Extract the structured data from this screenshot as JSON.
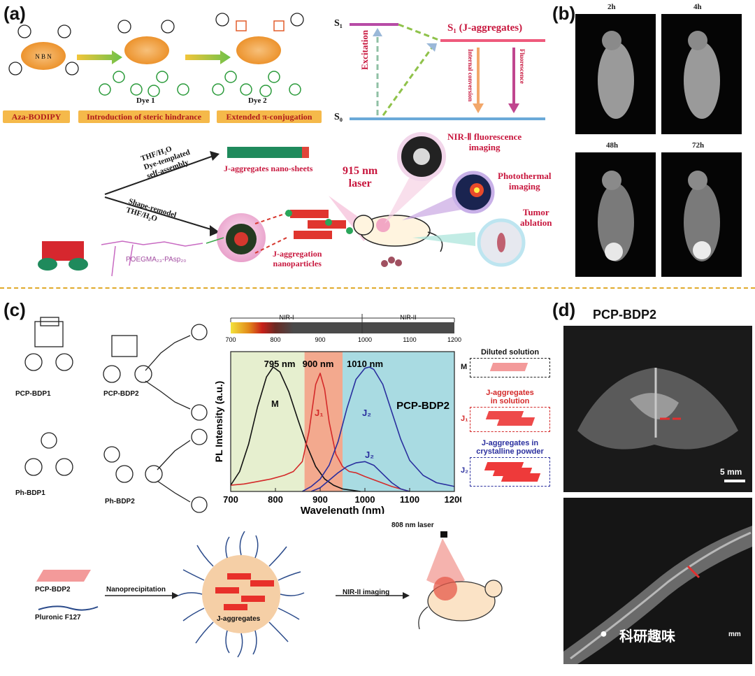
{
  "panel_labels": {
    "a": "(a)",
    "b": "(b)",
    "c": "(c)",
    "d": "(d)"
  },
  "panel_a": {
    "chips": [
      "Aza-BODIPY",
      "Introduction of steric hindrance",
      "Extended π-conjugation"
    ],
    "dye1": "Dye 1",
    "dye2": "Dye 2",
    "jablonski": {
      "s1": "S₁",
      "s1_j": "S₁ (J-aggregates)",
      "s0": "S₀",
      "excitation": "Excitation",
      "internal_conversion": "Internal conversion",
      "fluorescence": "Fluorescence"
    },
    "route_top": [
      "THF/H₂O",
      "Dye-templated",
      "self-assembly"
    ],
    "route_bottom": [
      "Shape-remodel",
      "THF/H₂O"
    ],
    "nanosheets": "J-aggregates nano-sheets",
    "nanoparticles": [
      "J-aggregation",
      "nanoparticles"
    ],
    "laser": [
      "915 nm",
      "laser"
    ],
    "polymer": "POEGMA₂₃-PAsp₂₀",
    "outcomes": [
      [
        "NIR-Ⅱ fluorescence",
        "imaging"
      ],
      [
        "Photothermal",
        "imaging"
      ],
      [
        "Tumor",
        "ablation"
      ]
    ]
  },
  "panel_b": {
    "times": [
      "2h",
      "4h",
      "48h",
      "72h"
    ]
  },
  "panel_c": {
    "molecules": [
      "PCP-BDP1",
      "PCP-BDP2",
      "Ph-BDP1",
      "Ph-BDP2"
    ],
    "spectrum_bar": {
      "labels": [
        "NIR-I",
        "NIR-II"
      ],
      "ticks": [
        "700",
        "800",
        "900",
        "1000",
        "1100",
        "1200"
      ]
    },
    "chart_data": {
      "type": "line",
      "title": "PCP-BDP2",
      "xlabel": "Wavelength (nm)",
      "ylabel": "PL Intensity (a.u.)",
      "xlim": [
        700,
        1200
      ],
      "x_ticks": [
        "700",
        "800",
        "900",
        "1000",
        "1100",
        "1200"
      ],
      "regions": [
        {
          "from": 700,
          "to": 865,
          "color": "#e6efcf"
        },
        {
          "from": 865,
          "to": 950,
          "color": "#f3a98e"
        },
        {
          "from": 950,
          "to": 1200,
          "color": "#a9dbe2"
        }
      ],
      "peak_labels": [
        "795 nm",
        "900 nm",
        "1010 nm"
      ],
      "series": [
        {
          "name": "M",
          "color": "#111111",
          "x": [
            700,
            720,
            740,
            760,
            780,
            795,
            810,
            830,
            850,
            870,
            890,
            910,
            930,
            950,
            970,
            990
          ],
          "y": [
            0.05,
            0.16,
            0.38,
            0.68,
            0.92,
            1.0,
            0.96,
            0.8,
            0.58,
            0.37,
            0.2,
            0.1,
            0.05,
            0.02,
            0.01,
            0.0
          ]
        },
        {
          "name": "J₁",
          "color": "#d42a2a",
          "x": [
            700,
            730,
            760,
            790,
            820,
            840,
            860,
            875,
            890,
            900,
            910,
            920,
            935,
            950,
            965,
            980,
            1000,
            1030,
            1060,
            1100
          ],
          "y": [
            0.05,
            0.06,
            0.08,
            0.1,
            0.13,
            0.16,
            0.24,
            0.48,
            0.86,
            0.95,
            0.82,
            0.56,
            0.3,
            0.2,
            0.16,
            0.15,
            0.12,
            0.08,
            0.04,
            0.0
          ]
        },
        {
          "name": "J₂",
          "color": "#2a2f9e",
          "x": [
            860,
            880,
            900,
            920,
            940,
            960,
            980,
            1000,
            1010,
            1020,
            1040,
            1060,
            1080,
            1100,
            1130,
            1160,
            1200
          ],
          "y": [
            0.0,
            0.04,
            0.1,
            0.21,
            0.4,
            0.67,
            0.9,
            0.99,
            1.0,
            0.98,
            0.86,
            0.64,
            0.42,
            0.25,
            0.13,
            0.07,
            0.04
          ]
        },
        {
          "name": "J₂",
          "color": "#2a2f9e",
          "x": [
            880,
            900,
            920,
            940,
            960,
            980,
            1000,
            1020,
            1040,
            1060,
            1080,
            1100
          ],
          "y": [
            0.0,
            0.03,
            0.09,
            0.15,
            0.2,
            0.23,
            0.24,
            0.21,
            0.14,
            0.07,
            0.02,
            0.0
          ]
        }
      ]
    },
    "legend": [
      {
        "title": "Diluted solution",
        "key": "M"
      },
      {
        "title": [
          "J-aggregates",
          "in solution"
        ],
        "key": "J₁"
      },
      {
        "title": [
          "J-aggregates in",
          "crystalline powder"
        ],
        "key": "J₂"
      }
    ],
    "bottom": {
      "dye_label": "PCP-BDP2",
      "polymer_label": "Pluronic F127",
      "step1": "Nanoprecipitation",
      "particle_label": "J-aggregates",
      "step2": "NIR-II imaging",
      "laser": "808 nm laser"
    }
  },
  "panel_d": {
    "title": "PCP-BDP2",
    "scale": "5 mm",
    "watermark": "科研趣味",
    "watermark_suffix": "mm"
  }
}
